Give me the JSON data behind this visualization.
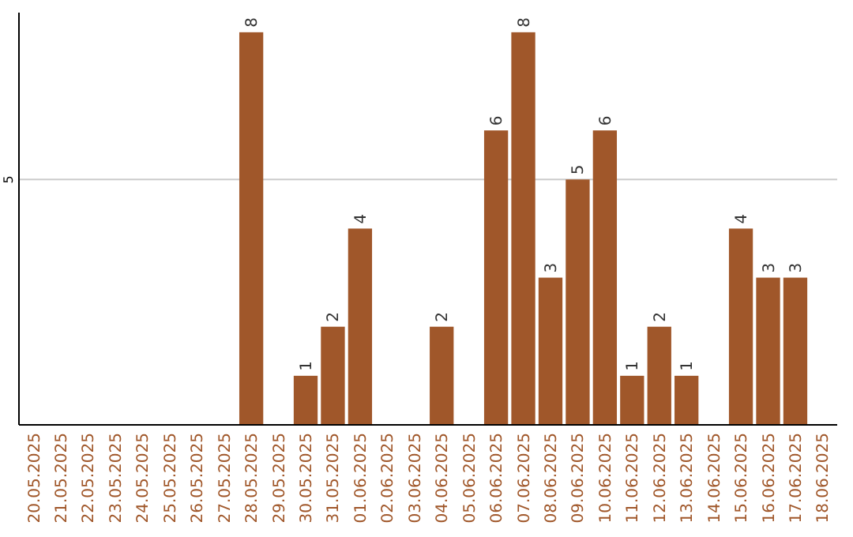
{
  "chart_data": {
    "type": "bar",
    "categories": [
      "20.05.2025",
      "21.05.2025",
      "22.05.2025",
      "23.05.2025",
      "24.05.2025",
      "25.05.2025",
      "26.05.2025",
      "27.05.2025",
      "28.05.2025",
      "29.05.2025",
      "30.05.2025",
      "31.05.2025",
      "01.06.2025",
      "02.06.2025",
      "03.06.2025",
      "04.06.2025",
      "05.06.2025",
      "06.06.2025",
      "07.06.2025",
      "08.06.2025",
      "09.06.2025",
      "10.06.2025",
      "11.06.2025",
      "12.06.2025",
      "13.06.2025",
      "14.06.2025",
      "15.06.2025",
      "16.06.2025",
      "17.06.2025",
      "18.06.2025"
    ],
    "values": [
      0,
      0,
      0,
      0,
      0,
      0,
      0,
      0,
      8,
      0,
      1,
      2,
      4,
      0,
      0,
      2,
      0,
      6,
      8,
      3,
      5,
      6,
      1,
      2,
      1,
      0,
      4,
      3,
      3,
      0
    ],
    "value_labels": [
      null,
      null,
      null,
      null,
      null,
      null,
      null,
      null,
      "8",
      null,
      "1",
      "2",
      "4",
      null,
      null,
      "2",
      null,
      "6",
      "8",
      "3",
      "5",
      "6",
      "1",
      "2",
      "1",
      null,
      "4",
      "3",
      "3",
      null
    ],
    "color": "#a0572a",
    "ylim": [
      0,
      8.4
    ],
    "yticks": [
      5
    ],
    "grid": "y"
  }
}
